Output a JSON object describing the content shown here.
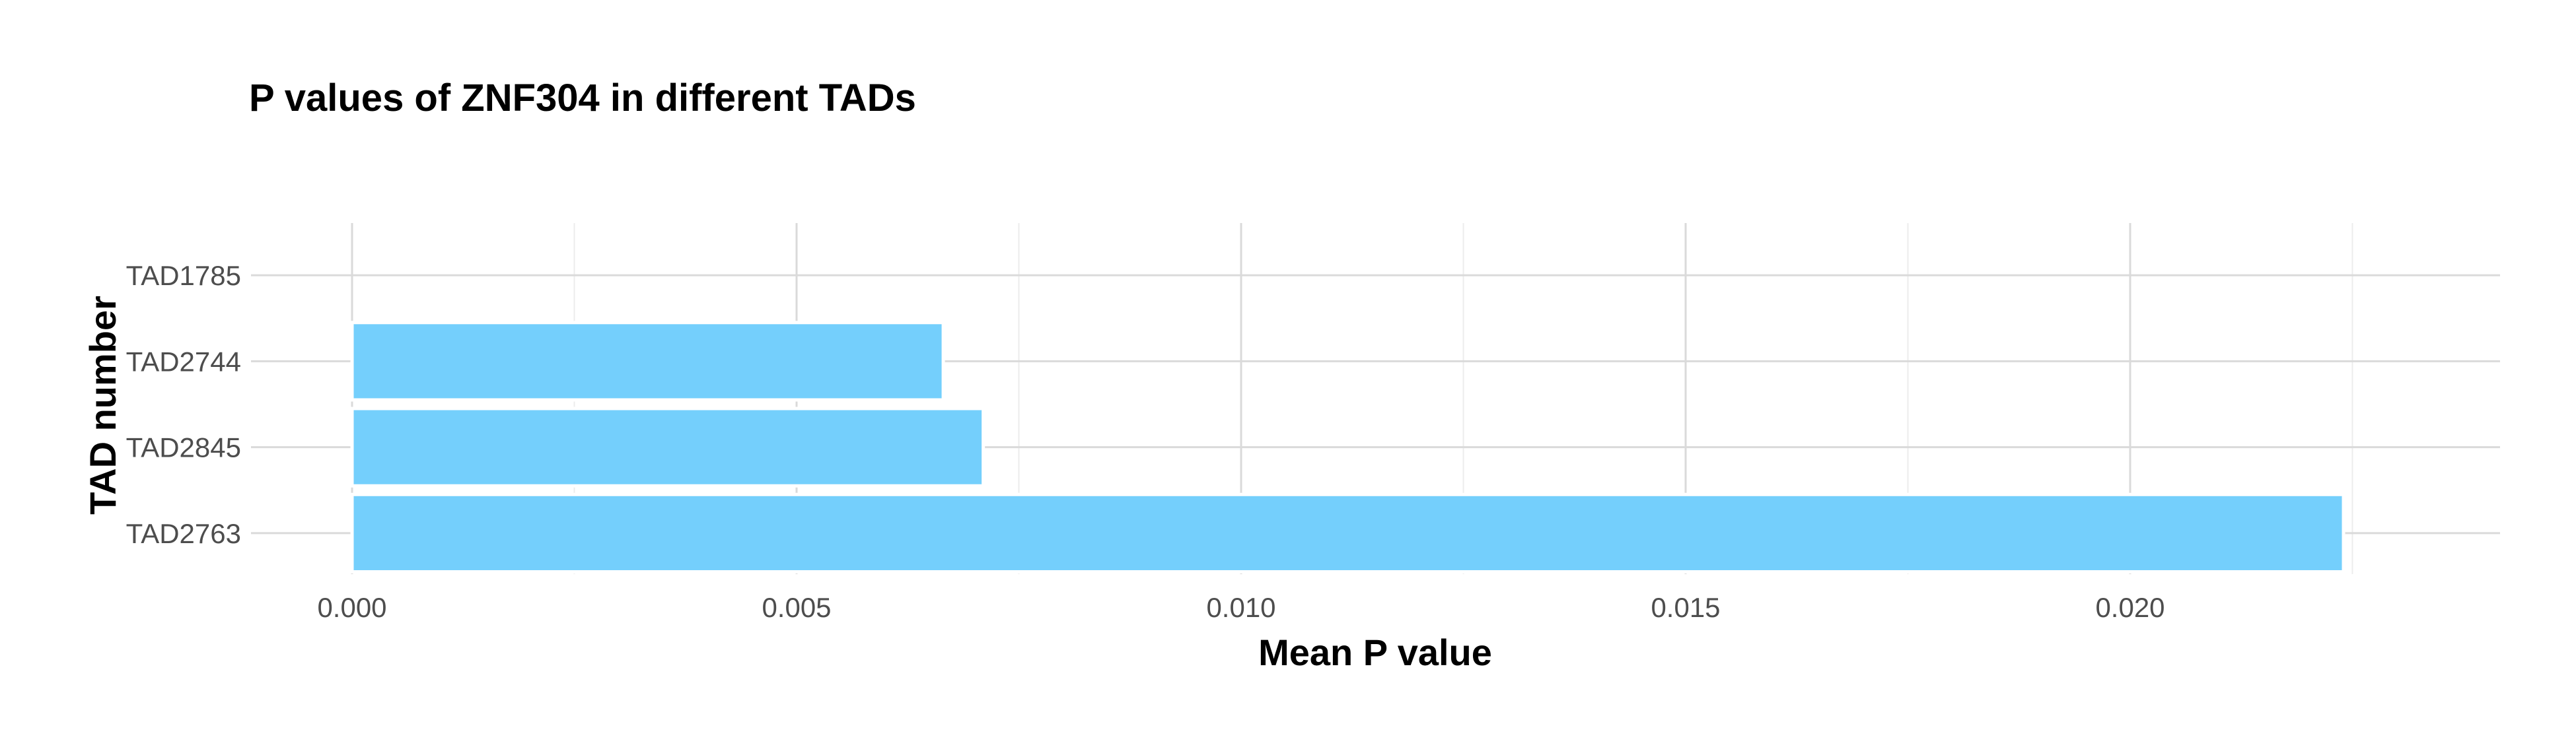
{
  "chart_data": {
    "type": "bar",
    "orientation": "horizontal",
    "title": "P values of ZNF304 in different TADs",
    "xlabel": "Mean P value",
    "ylabel": "TAD number",
    "categories": [
      "TAD1785",
      "TAD2744",
      "TAD2845",
      "TAD2763"
    ],
    "values": [
      0,
      0.00665,
      0.0071,
      0.0224
    ],
    "xlim": [
      0,
      0.0235
    ],
    "x_ticks": [
      0.0,
      0.005,
      0.01,
      0.015,
      0.02
    ],
    "x_tick_labels": [
      "0.000",
      "0.005",
      "0.010",
      "0.015",
      "0.020"
    ],
    "grid": true,
    "legend": "none",
    "colors": {
      "bar_fill": "#74cffc",
      "bar_outline": "#ffffff",
      "grid_major": "#dadada",
      "grid_minor": "#ececec"
    }
  }
}
